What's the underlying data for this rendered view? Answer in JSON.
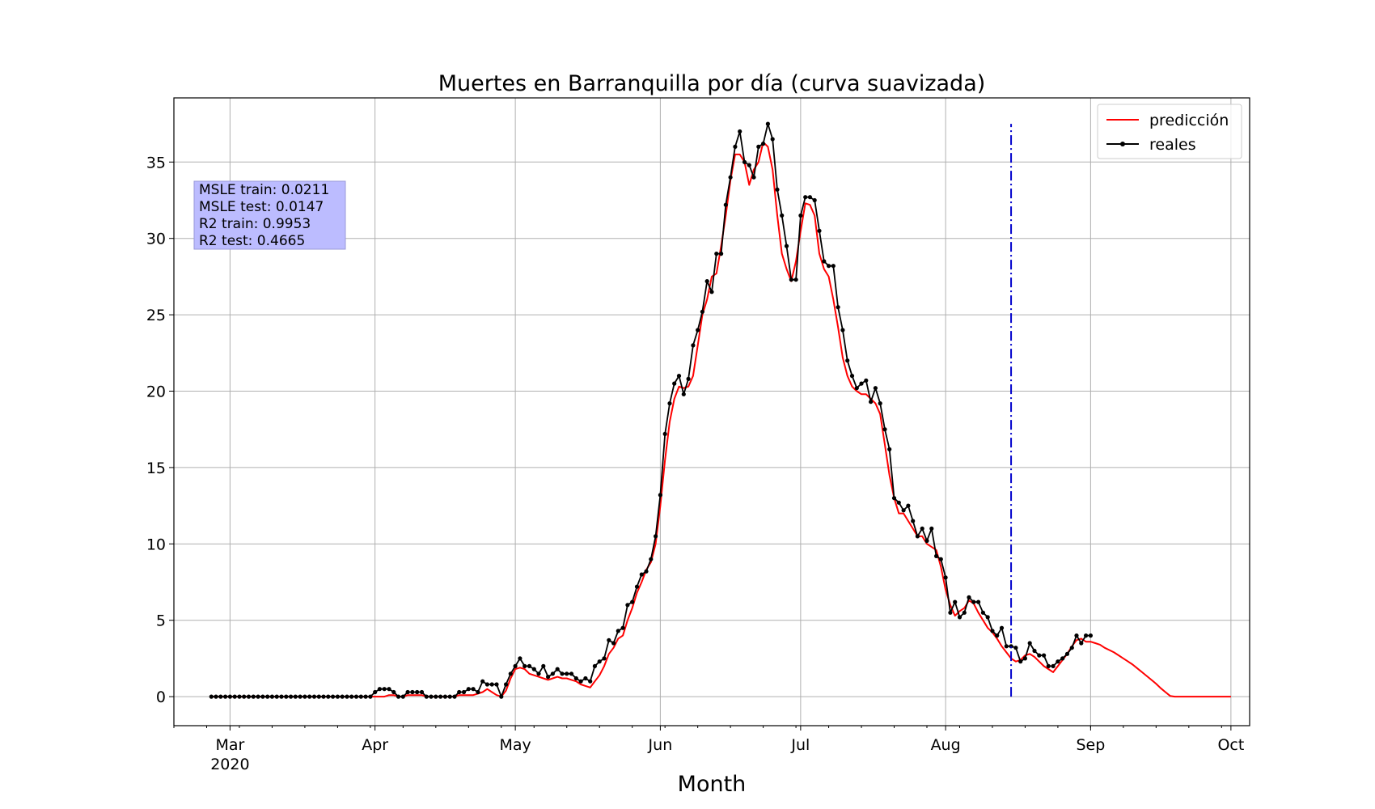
{
  "chart_data": {
    "type": "line",
    "title": "Muertes en Barranquilla por día (curva suavizada)",
    "xlabel": "Month",
    "ylabel": "",
    "x_start_date": "2020-02-26",
    "xlim": [
      "2020-02-18",
      "2020-10-05"
    ],
    "ylim": [
      -1.9,
      39.2
    ],
    "grid": true,
    "legend_position": "top-right",
    "x_ticks": [
      {
        "date": "2020-03-01",
        "label": "Mar",
        "sublabel": "2020"
      },
      {
        "date": "2020-04-01",
        "label": "Apr",
        "sublabel": ""
      },
      {
        "date": "2020-05-01",
        "label": "May",
        "sublabel": ""
      },
      {
        "date": "2020-06-01",
        "label": "Jun",
        "sublabel": ""
      },
      {
        "date": "2020-07-01",
        "label": "Jul",
        "sublabel": ""
      },
      {
        "date": "2020-08-01",
        "label": "Aug",
        "sublabel": ""
      },
      {
        "date": "2020-09-01",
        "label": "Sep",
        "sublabel": ""
      },
      {
        "date": "2020-10-01",
        "label": "Oct",
        "sublabel": ""
      }
    ],
    "y_ticks": [
      0,
      5,
      10,
      15,
      20,
      25,
      30,
      35
    ],
    "vline": {
      "date": "2020-08-15",
      "ymax": 37.5,
      "color": "#0000cc",
      "style": "dashdot"
    },
    "metrics_box": {
      "lines": [
        "MSLE train: 0.0211",
        "MSLE test: 0.0147",
        "R2 train: 0.9953",
        "R2 test: 0.4665"
      ],
      "color": "#bcbcff"
    },
    "series": [
      {
        "name": "reales",
        "color": "#000000",
        "marker": "dot",
        "values": [
          0,
          0,
          0,
          0,
          0,
          0,
          0,
          0,
          0,
          0,
          0,
          0,
          0,
          0,
          0,
          0,
          0,
          0,
          0,
          0,
          0,
          0,
          0,
          0,
          0,
          0,
          0,
          0,
          0,
          0,
          0,
          0,
          0,
          0,
          0,
          0.3,
          0.5,
          0.5,
          0.5,
          0.3,
          0,
          0,
          0.3,
          0.3,
          0.3,
          0.3,
          0,
          0,
          0,
          0,
          0,
          0,
          0,
          0.3,
          0.3,
          0.5,
          0.5,
          0.3,
          1,
          0.8,
          0.8,
          0.8,
          0,
          0.8,
          1.5,
          2,
          2.5,
          2,
          2,
          1.8,
          1.5,
          2,
          1.3,
          1.5,
          1.8,
          1.5,
          1.5,
          1.5,
          1.2,
          1,
          1.2,
          1,
          2,
          2.3,
          2.5,
          3.7,
          3.5,
          4.3,
          4.5,
          6,
          6.2,
          7.2,
          8,
          8.2,
          9,
          10.5,
          13.2,
          17.2,
          19.2,
          20.5,
          21,
          19.8,
          20.8,
          23,
          24,
          25.2,
          27.2,
          26.5,
          29,
          29,
          32.2,
          34,
          36,
          37,
          35,
          34.8,
          34,
          36,
          36.2,
          37.5,
          36.5,
          33.2,
          31.5,
          29.5,
          27.3,
          27.3,
          31.5,
          32.7,
          32.7,
          32.5,
          30.5,
          28.5,
          28.2,
          28.2,
          25.5,
          24,
          22,
          21,
          20.2,
          20.5,
          20.7,
          19.3,
          20.2,
          19.2,
          17.5,
          16.2,
          13,
          12.7,
          12.2,
          12.5,
          11.5,
          10.5,
          11,
          10.2,
          11,
          9.2,
          9,
          7.8,
          5.5,
          6.2,
          5.2,
          5.5,
          6.5,
          6.2,
          6.2,
          5.5,
          5.2,
          4.3,
          4,
          4.5,
          3.3,
          3.3,
          3.2,
          2.3,
          2.5,
          3.5,
          3,
          2.7,
          2.7,
          2,
          2,
          2.3,
          2.5,
          2.8,
          3.2,
          4,
          3.5,
          4,
          4
        ]
      },
      {
        "name": "predicción",
        "color": "#ff0000",
        "marker": "none",
        "values": [
          0,
          0,
          0,
          0,
          0,
          0,
          0,
          0,
          0,
          0,
          0,
          0,
          0,
          0,
          0,
          0,
          0,
          0,
          0,
          0,
          0,
          0,
          0,
          0,
          0,
          0,
          0,
          0,
          0,
          0,
          0,
          0,
          0,
          0,
          0,
          0,
          0,
          0,
          0.1,
          0.1,
          0,
          0,
          0.1,
          0.1,
          0.1,
          0.1,
          0,
          0,
          0,
          0,
          0,
          0,
          0,
          0.1,
          0.1,
          0.1,
          0.1,
          0.2,
          0.3,
          0.5,
          0.3,
          0.1,
          0,
          0.4,
          1.2,
          1.8,
          1.9,
          1.8,
          1.5,
          1.4,
          1.3,
          1.2,
          1.1,
          1.2,
          1.3,
          1.2,
          1.2,
          1.1,
          1,
          0.8,
          0.7,
          0.6,
          1,
          1.4,
          2,
          2.8,
          3.2,
          3.8,
          4,
          5,
          5.8,
          6.8,
          7.5,
          8.3,
          8.8,
          10,
          12.5,
          15.5,
          18,
          19.5,
          20.3,
          20.2,
          20.3,
          21,
          23,
          25,
          26,
          27.5,
          27.7,
          29.5,
          31.5,
          33.8,
          35.5,
          35.5,
          35,
          33.5,
          34.5,
          35,
          36.3,
          36,
          34.5,
          31.5,
          29,
          28,
          27.2,
          28.5,
          30.5,
          32.3,
          32.2,
          31.5,
          29,
          28,
          27.5,
          26,
          24.2,
          22.2,
          21,
          20.3,
          20,
          19.8,
          19.8,
          19.5,
          19.2,
          18.5,
          16.5,
          14.5,
          13,
          12,
          12,
          11.5,
          11,
          10.5,
          10.5,
          10,
          9.8,
          9.6,
          8.5,
          7,
          6,
          5.3,
          5.6,
          5.8,
          6.3,
          6.1,
          5.5,
          5,
          4.5,
          4.2,
          3.8,
          3.3,
          2.9,
          2.5,
          2.3,
          2.4,
          2.7,
          2.8,
          2.6,
          2.3,
          2,
          1.8,
          1.6,
          2,
          2.4,
          2.8,
          3.3,
          3.7,
          3.8,
          3.6,
          3.6,
          3.5,
          3.4,
          3.2,
          3.05,
          2.9,
          2.7,
          2.5,
          2.3,
          2.1,
          1.85,
          1.6,
          1.35,
          1.1,
          0.85,
          0.55,
          0.3,
          0.05,
          0,
          0,
          0,
          0,
          0,
          0,
          0,
          0,
          0,
          0,
          0,
          0,
          0
        ]
      }
    ]
  }
}
